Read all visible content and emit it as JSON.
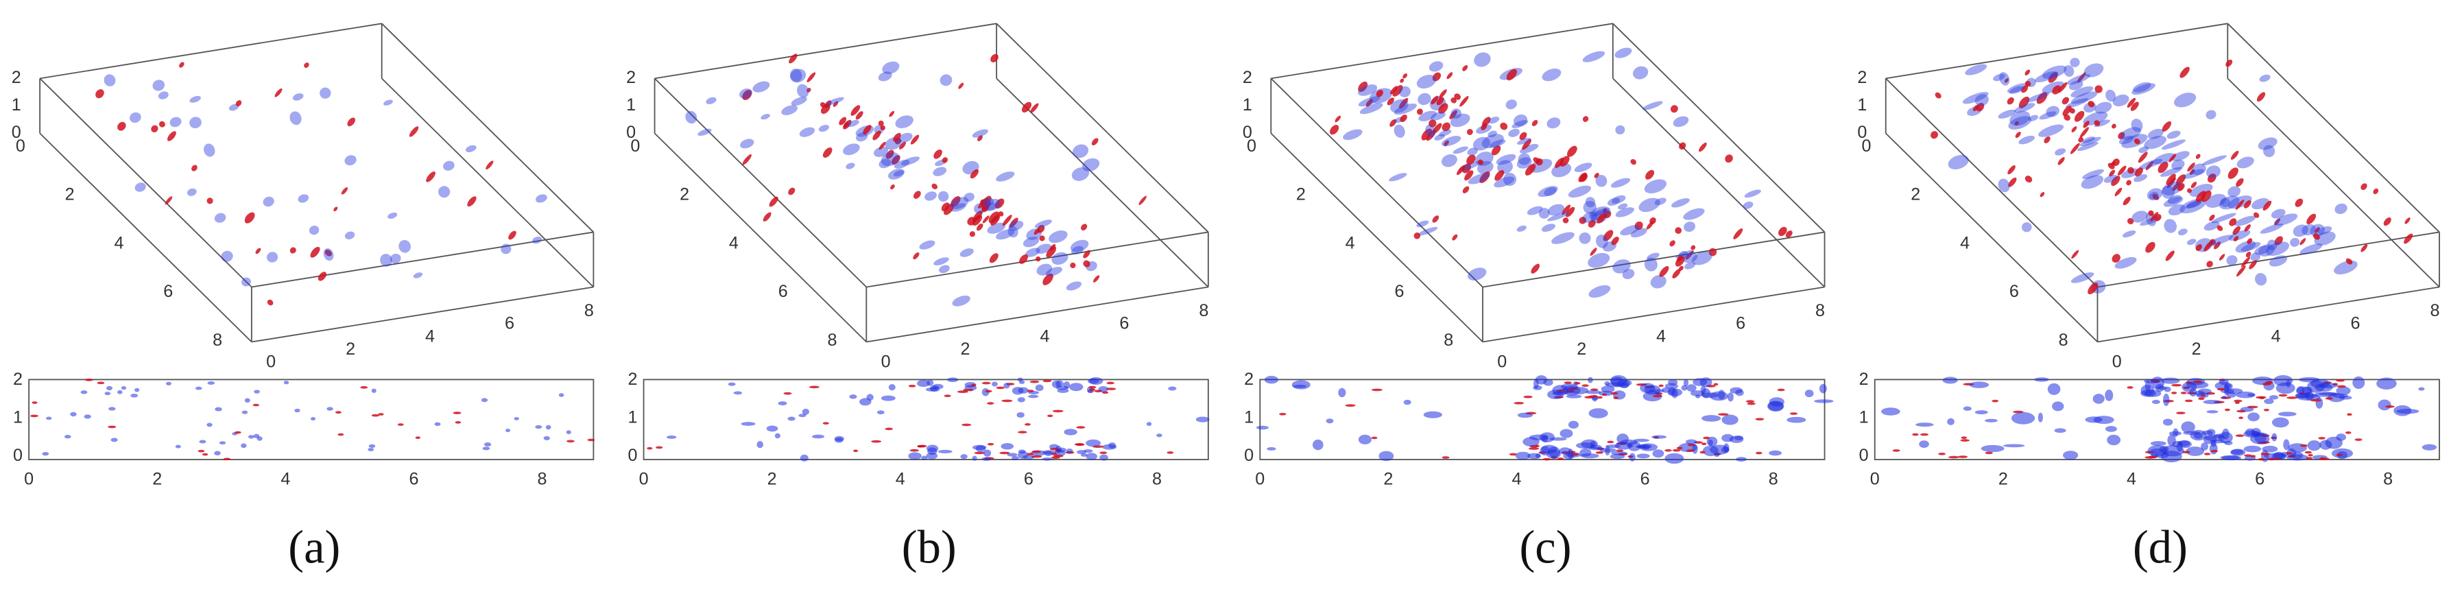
{
  "panels": [
    {
      "label": "(a)",
      "box": {
        "zticks": [
          "0",
          "1",
          "2"
        ],
        "depthticks": [
          "0",
          "2",
          "4",
          "6",
          "8"
        ],
        "xticks": [
          "0",
          "2",
          "4",
          "6",
          "8"
        ]
      },
      "strip": {
        "yticks": [
          "0",
          "1",
          "2"
        ],
        "xticks": [
          "0",
          "2",
          "4",
          "6",
          "8"
        ]
      }
    },
    {
      "label": "(b)",
      "box": {
        "zticks": [
          "0",
          "1",
          "2"
        ],
        "depthticks": [
          "0",
          "2",
          "4",
          "6",
          "8"
        ],
        "xticks": [
          "0",
          "2",
          "4",
          "6",
          "8"
        ]
      },
      "strip": {
        "yticks": [
          "0",
          "1",
          "2"
        ],
        "xticks": [
          "0",
          "2",
          "4",
          "6",
          "8"
        ]
      }
    },
    {
      "label": "(c)",
      "box": {
        "zticks": [
          "0",
          "1",
          "2"
        ],
        "depthticks": [
          "0",
          "2",
          "4",
          "6",
          "8"
        ],
        "xticks": [
          "0",
          "2",
          "4",
          "6",
          "8"
        ]
      },
      "strip": {
        "yticks": [
          "0",
          "1",
          "2"
        ],
        "xticks": [
          "0",
          "2",
          "4",
          "6",
          "8"
        ]
      }
    },
    {
      "label": "(d)",
      "box": {
        "zticks": [
          "0",
          "1",
          "2"
        ],
        "depthticks": [
          "0",
          "2",
          "4",
          "6",
          "8"
        ],
        "xticks": [
          "0",
          "2",
          "4",
          "6",
          "8"
        ]
      },
      "strip": {
        "yticks": [
          "0",
          "1",
          "2"
        ],
        "xticks": [
          "0",
          "2",
          "4",
          "6",
          "8"
        ]
      }
    }
  ]
}
